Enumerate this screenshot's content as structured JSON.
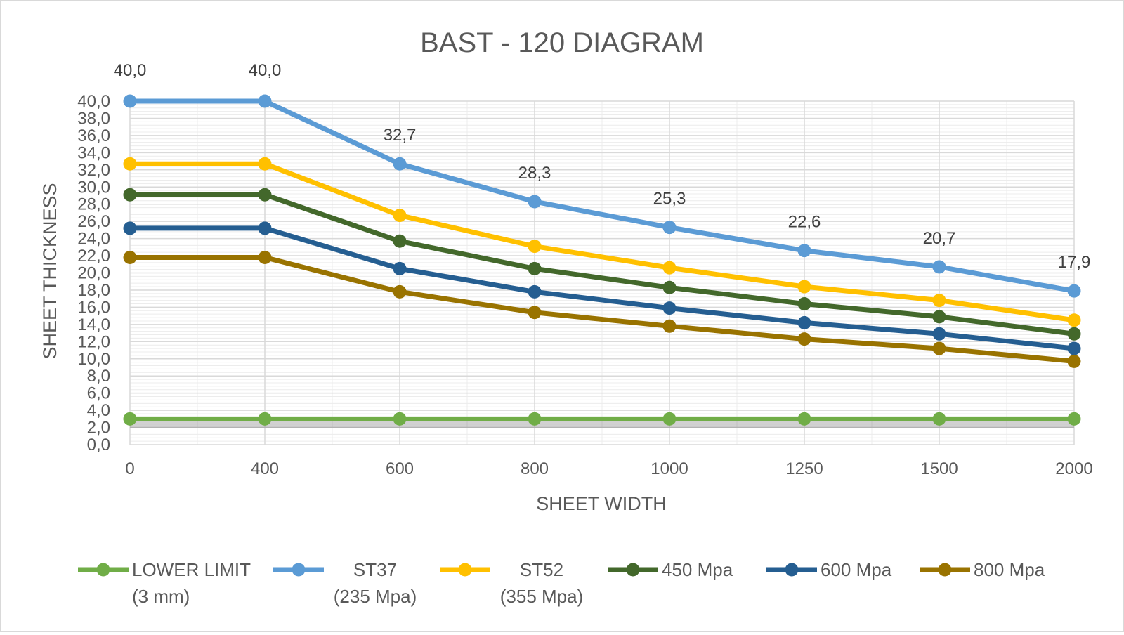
{
  "chart_data": {
    "type": "line",
    "title": "BAST - 120 DIAGRAM",
    "xlabel": "SHEET WIDTH",
    "ylabel": "SHEET THICKNESS",
    "categories": [
      "0",
      "400",
      "600",
      "800",
      "1000",
      "1250",
      "1500",
      "2000"
    ],
    "ylim": [
      0,
      40
    ],
    "ytick_step": 2,
    "ytick_format": "comma-1-decimal",
    "grid": true,
    "legend_position": "bottom",
    "series": [
      {
        "name": "LOWER LIMIT (3 mm)",
        "name_lines": [
          "LOWER LIMIT",
          "(3 mm)"
        ],
        "color": "#70ad47",
        "values": [
          3,
          3,
          3,
          3,
          3,
          3,
          3,
          3
        ]
      },
      {
        "name": "ST37 (235 Mpa)",
        "name_lines": [
          "ST37",
          "(235 Mpa)"
        ],
        "color": "#5b9bd5",
        "values": [
          40.0,
          40.0,
          32.7,
          28.3,
          25.3,
          22.6,
          20.7,
          17.9
        ],
        "data_labels": [
          "40,0",
          "40,0",
          "32,7",
          "28,3",
          "25,3",
          "22,6",
          "20,7",
          "17,9"
        ]
      },
      {
        "name": "ST52 (355 Mpa)",
        "name_lines": [
          "ST52",
          "(355 Mpa)"
        ],
        "color": "#ffc000",
        "values": [
          32.7,
          32.7,
          26.7,
          23.1,
          20.6,
          18.4,
          16.8,
          14.5
        ]
      },
      {
        "name": "450  Mpa",
        "name_lines": [
          "450  Mpa"
        ],
        "color": "#43682b",
        "values": [
          29.1,
          29.1,
          23.7,
          20.5,
          18.3,
          16.4,
          14.9,
          12.9
        ]
      },
      {
        "name": "600 Mpa",
        "name_lines": [
          "600 Mpa"
        ],
        "color": "#255e91",
        "values": [
          25.2,
          25.2,
          20.5,
          17.8,
          15.9,
          14.2,
          12.9,
          11.2
        ]
      },
      {
        "name": "800 Mpa",
        "name_lines": [
          "800 Mpa"
        ],
        "color": "#997300",
        "values": [
          21.8,
          21.8,
          17.8,
          15.4,
          13.8,
          12.3,
          11.2,
          9.7
        ]
      }
    ]
  }
}
